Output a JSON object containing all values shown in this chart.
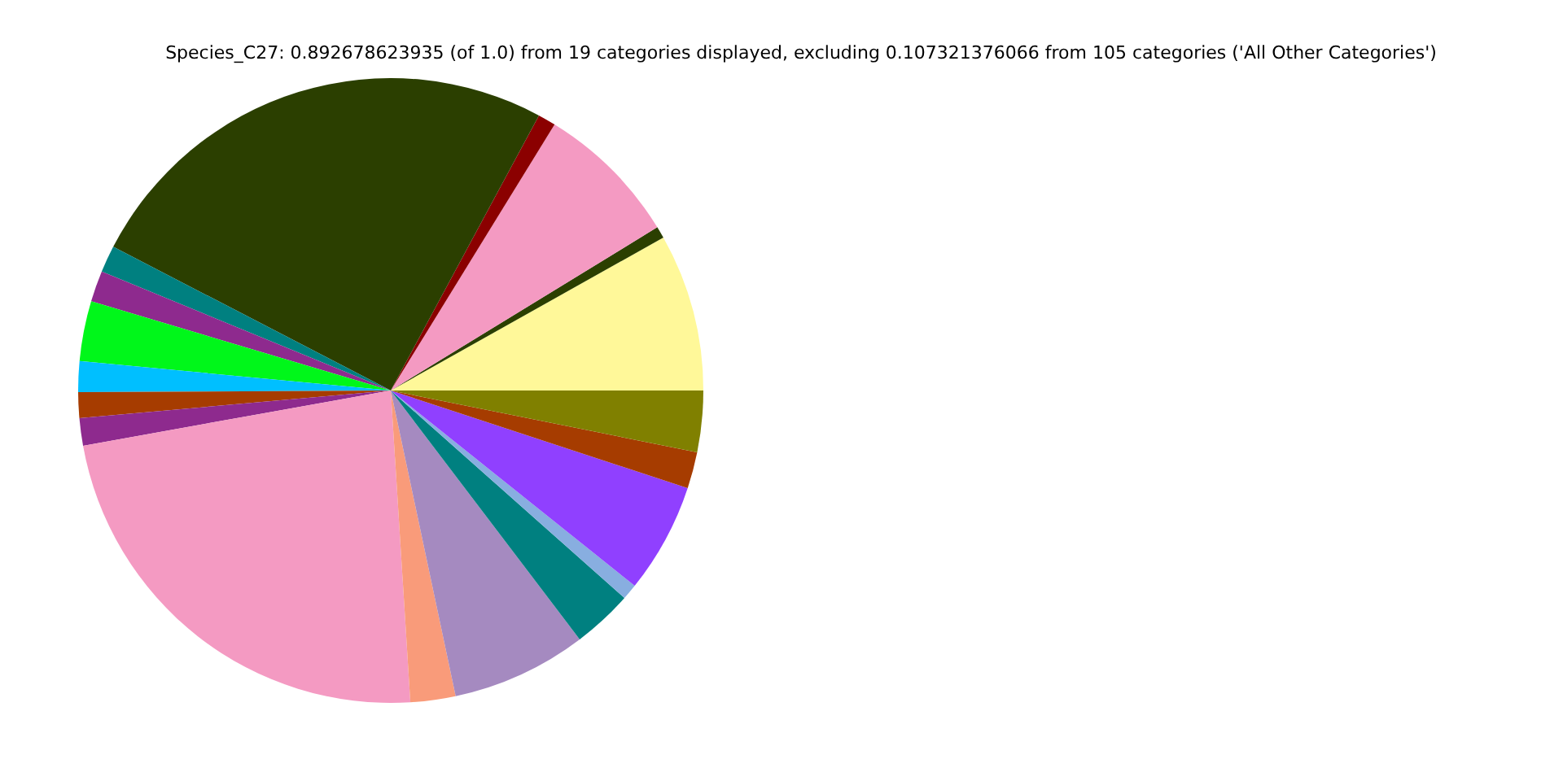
{
  "chart_data": {
    "type": "pie",
    "title": "Species_C27: 0.892678623935 (of 1.0) from 19 categories displayed, excluding 0.107321376066 from 105 categories ('All Other Categories')",
    "categories": [
      null,
      null,
      null,
      null,
      null,
      null,
      null,
      null,
      null,
      null,
      null,
      null,
      null,
      null,
      null,
      null,
      null,
      null,
      null
    ],
    "values": [
      8.14,
      0.61,
      7.47,
      0.92,
      25.25,
      1.39,
      1.61,
      3.11,
      1.58,
      1.33,
      1.42,
      23.17,
      2.33,
      7.0,
      3.11,
      0.81,
      5.69,
      1.89,
      3.17
    ],
    "colors": [
      "#fff899",
      "#2b3f00",
      "#f49ac2",
      "#8b0000",
      "#2b3f00",
      "#008080",
      "#8e2a8e",
      "#00f71a",
      "#00bfff",
      "#a63c00",
      "#8e2a8e",
      "#f49ac2",
      "#f99b7a",
      "#a58ac0",
      "#008080",
      "#88aee0",
      "#9040ff",
      "#a63c00",
      "#808000"
    ]
  }
}
